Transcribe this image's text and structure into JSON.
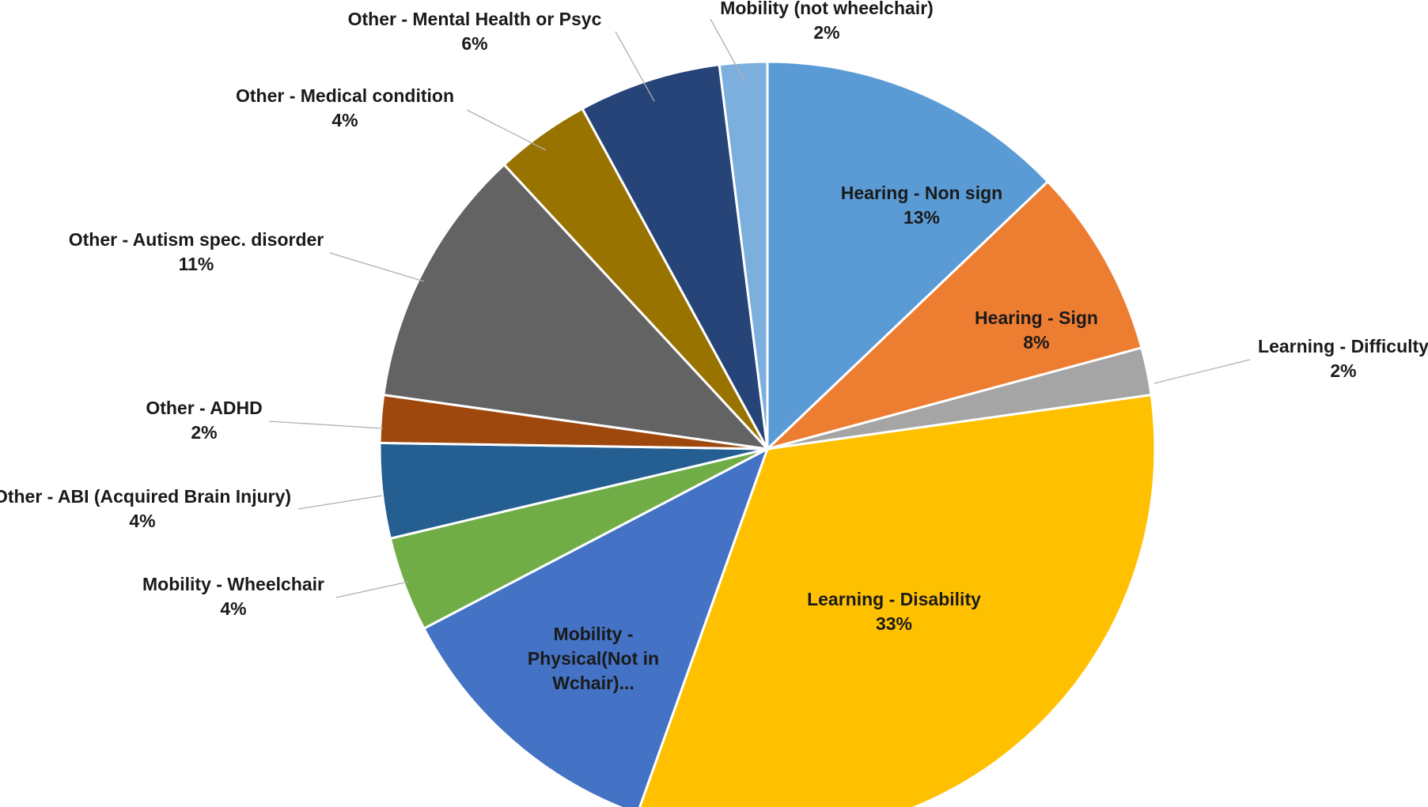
{
  "chart_data": {
    "type": "pie",
    "title": "",
    "slices": [
      {
        "label": "Hearing - Non sign",
        "value": 13,
        "pct_label": "13%",
        "color": "#5B9BD5",
        "label_pos": "inside"
      },
      {
        "label": "Hearing - Sign",
        "value": 8,
        "pct_label": "8%",
        "color": "#ED7D31",
        "label_pos": "inside"
      },
      {
        "label": "Learning - Difficulty",
        "value": 2,
        "pct_label": "2%",
        "color": "#A5A5A5",
        "label_pos": "outside"
      },
      {
        "label": "Learning - Disability",
        "value": 33,
        "pct_label": "33%",
        "color": "#FFC000",
        "label_pos": "inside"
      },
      {
        "label": "Mobility - Physical(Not in Wchair)...",
        "lines": [
          "Mobility -",
          "Physical(Not in",
          "Wchair)..."
        ],
        "value": 12,
        "pct_label": "",
        "color": "#4472C4",
        "label_pos": "inside"
      },
      {
        "label": "Mobility - Wheelchair",
        "value": 4,
        "pct_label": "4%",
        "color": "#70AD47",
        "label_pos": "outside"
      },
      {
        "label": "Other - ABI (Acquired Brain Injury)",
        "value": 4,
        "pct_label": "4%",
        "color": "#255E91",
        "label_pos": "outside"
      },
      {
        "label": "Other - ADHD",
        "value": 2,
        "pct_label": "2%",
        "color": "#9E480E",
        "label_pos": "outside"
      },
      {
        "label": "Other - Autism spec. disorder",
        "value": 11,
        "pct_label": "11%",
        "color": "#636363",
        "label_pos": "outside"
      },
      {
        "label": "Other - Medical condition",
        "value": 4,
        "pct_label": "4%",
        "color": "#997300",
        "label_pos": "outside"
      },
      {
        "label": "Other - Mental Health or Psyc",
        "value": 6,
        "pct_label": "6%",
        "color": "#264478",
        "label_pos": "outside"
      },
      {
        "label": "Mobility (not wheelchair)",
        "value": 2,
        "pct_label": "2%",
        "color": "#7CAFDD",
        "label_pos": "outside"
      }
    ],
    "start_angle": "12 o'clock",
    "direction": "clockwise",
    "legend": "none"
  }
}
